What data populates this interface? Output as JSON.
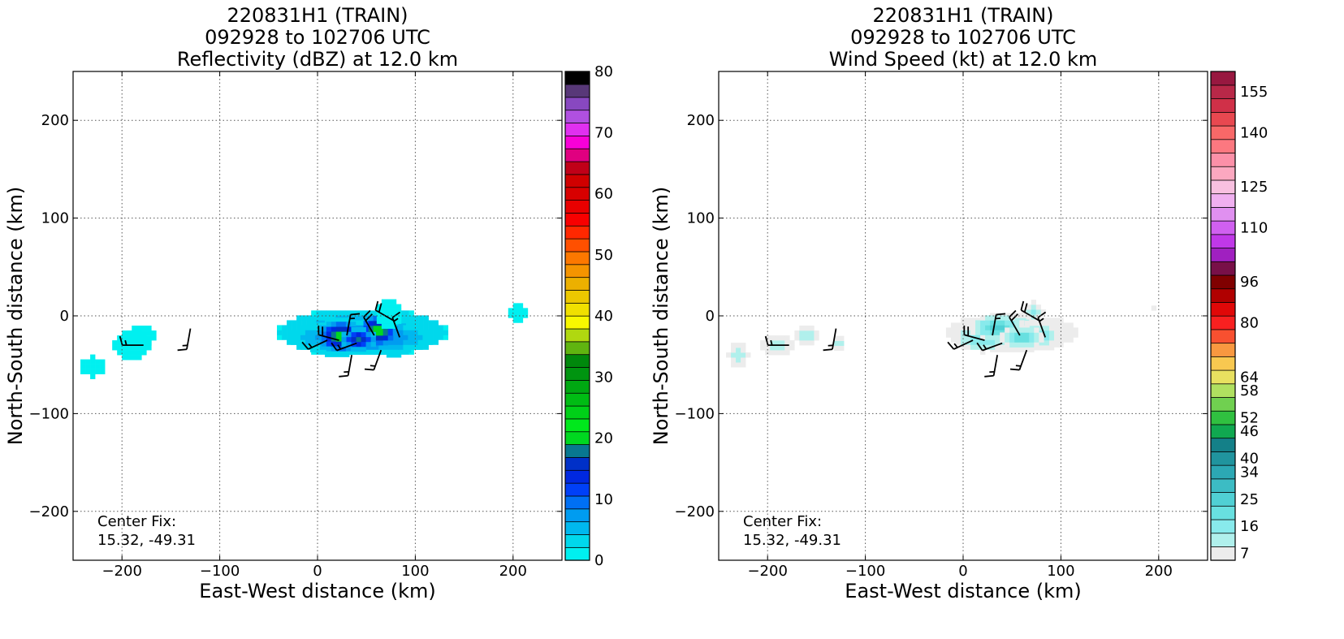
{
  "chart_data": [
    {
      "type": "heatmap",
      "title_lines": [
        "220831H1 (TRAIN)",
        "092928 to 102706 UTC",
        "Reflectivity (dBZ) at 12.0 km"
      ],
      "xlabel": "East-West distance (km)",
      "ylabel": "North-South distance (km)",
      "xlim": [
        -250,
        250
      ],
      "ylim": [
        -250,
        250
      ],
      "xticks": [
        -200,
        -100,
        0,
        100,
        200
      ],
      "xtick_labels": [
        "−200",
        "−100",
        "0",
        "100",
        "200"
      ],
      "yticks": [
        200,
        100,
        0,
        -100,
        -200
      ],
      "ytick_labels": [
        "200",
        "100",
        "0",
        "−100",
        "−200"
      ],
      "grid": true,
      "annotation_lines": [
        "Center Fix:",
        "15.32, -49.31"
      ],
      "colorbar": {
        "vmin": 0,
        "vmax": 80,
        "ticks": [
          0,
          10,
          20,
          30,
          40,
          50,
          60,
          70,
          80
        ],
        "tick_labels": [
          "0",
          "10",
          "20",
          "30",
          "40",
          "50",
          "60",
          "70",
          "80"
        ],
        "colors": [
          "#00f0f0",
          "#00d8ec",
          "#00b8ee",
          "#009cf0",
          "#0070f4",
          "#0040f8",
          "#0028e0",
          "#0030c8",
          "#087890",
          "#00d820",
          "#00e81c",
          "#00d018",
          "#00bc14",
          "#00a812",
          "#009410",
          "#00880c",
          "#60b410",
          "#b0d810",
          "#f8f800",
          "#f0e000",
          "#ecc800",
          "#ecb000",
          "#f49400",
          "#fc7800",
          "#ff5000",
          "#ff2800",
          "#f80000",
          "#e80000",
          "#d80000",
          "#d00000",
          "#c00018",
          "#e00080",
          "#f800d8",
          "#e030f0",
          "#b050e0",
          "#8848c0",
          "#583878",
          "#000000"
        ]
      },
      "fields": [
        {
          "x": 46,
          "y": -17,
          "sx": 50,
          "sy": 14,
          "v": 8
        },
        {
          "x": 20,
          "y": -22,
          "sx": 20,
          "sy": 11,
          "v": 8
        },
        {
          "x": 78,
          "y": -20,
          "sx": 16,
          "sy": 12,
          "v": 8
        },
        {
          "x": 45,
          "y": -22,
          "sx": 42,
          "sy": 10,
          "v": 11
        },
        {
          "x": 24,
          "y": -21,
          "sx": 13,
          "sy": 9,
          "v": 22
        },
        {
          "x": 62,
          "y": -15,
          "sx": 11,
          "sy": 9,
          "v": 22
        },
        {
          "x": 42,
          "y": -24,
          "sx": 10,
          "sy": 6,
          "v": 18
        },
        {
          "x": 73,
          "y": 2,
          "sx": 8,
          "sy": 9,
          "v": 2
        },
        {
          "x": -190,
          "y": -30,
          "sx": 11,
          "sy": 9,
          "v": 2
        },
        {
          "x": -230,
          "y": -52,
          "sx": 8,
          "sy": 6,
          "v": 2
        },
        {
          "x": -180,
          "y": -20,
          "sx": 9,
          "sy": 7,
          "v": 2
        },
        {
          "x": 205,
          "y": 3,
          "sx": 5,
          "sy": 5,
          "v": 2
        }
      ],
      "barbs": [
        {
          "x": -130,
          "y": -13,
          "dir": 190,
          "spd": 15
        },
        {
          "x": -178,
          "y": -30,
          "dir": 270,
          "spd": 15
        },
        {
          "x": 22,
          "y": -25,
          "dir": 285,
          "spd": 20
        },
        {
          "x": 30,
          "y": -20,
          "dir": 10,
          "spd": 15
        },
        {
          "x": 40,
          "y": -28,
          "dir": 250,
          "spd": 15
        },
        {
          "x": 58,
          "y": -20,
          "dir": 330,
          "spd": 20
        },
        {
          "x": 65,
          "y": -35,
          "dir": 200,
          "spd": 15
        },
        {
          "x": 78,
          "y": -5,
          "dir": 300,
          "spd": 20
        },
        {
          "x": 84,
          "y": -22,
          "dir": 340,
          "spd": 15
        },
        {
          "x": 35,
          "y": -40,
          "dir": 190,
          "spd": 15
        },
        {
          "x": 10,
          "y": -25,
          "dir": 245,
          "spd": 15
        }
      ]
    },
    {
      "type": "heatmap",
      "title_lines": [
        "220831H1 (TRAIN)",
        "092928 to 102706 UTC",
        "Wind Speed (kt) at 12.0 km"
      ],
      "xlabel": "East-West distance (km)",
      "ylabel": "North-South distance (km)",
      "xlim": [
        -250,
        250
      ],
      "ylim": [
        -250,
        250
      ],
      "xticks": [
        -200,
        -100,
        0,
        100,
        200
      ],
      "xtick_labels": [
        "−200",
        "−100",
        "0",
        "100",
        "200"
      ],
      "yticks": [
        200,
        100,
        0,
        -100,
        -200
      ],
      "ytick_labels": [
        "200",
        "100",
        "0",
        "−100",
        "−200"
      ],
      "grid": true,
      "annotation_lines": [
        "Center Fix:",
        "15.32, -49.31"
      ],
      "colorbar": {
        "vmin": 7,
        "vmax": 160,
        "ticks": [
          7,
          16,
          25,
          34,
          40,
          46,
          52,
          58,
          64,
          80,
          96,
          110,
          125,
          140,
          155
        ],
        "tick_labels": [
          "7",
          "16",
          "25",
          "34",
          "40",
          "46",
          "52",
          "58",
          "64",
          "80",
          "96",
          "110",
          "125",
          "140",
          "155"
        ],
        "colors": [
          "#ececec",
          "#b0f0ec",
          "#88eaec",
          "#68e0e0",
          "#50d0d4",
          "#3cbcc4",
          "#2ca8b4",
          "#20949e",
          "#148088",
          "#10a850",
          "#30c040",
          "#70d050",
          "#b0e060",
          "#e8e060",
          "#f8c850",
          "#f89840",
          "#f85030",
          "#f82020",
          "#e00808",
          "#b00000",
          "#800000",
          "#781048",
          "#a020c0",
          "#c038e8",
          "#d060f0",
          "#e090f0",
          "#f0b0f0",
          "#f8c0e0",
          "#fca8c0",
          "#fc90a8",
          "#fc7880",
          "#f86868",
          "#e84850",
          "#d03048",
          "#b82848",
          "#981840"
        ]
      },
      "fields": [
        {
          "x": 50,
          "y": -17,
          "sx": 48,
          "sy": 13,
          "v": 18
        },
        {
          "x": 20,
          "y": -22,
          "sx": 20,
          "sy": 10,
          "v": 20
        },
        {
          "x": 78,
          "y": -20,
          "sx": 15,
          "sy": 11,
          "v": 18
        },
        {
          "x": 35,
          "y": -12,
          "sx": 16,
          "sy": 8,
          "v": 28
        },
        {
          "x": 60,
          "y": -22,
          "sx": 14,
          "sy": 7,
          "v": 25
        },
        {
          "x": 72,
          "y": 4,
          "sx": 8,
          "sy": 8,
          "v": 16
        },
        {
          "x": -190,
          "y": -30,
          "sx": 12,
          "sy": 9,
          "v": 15
        },
        {
          "x": -230,
          "y": -40,
          "sx": 8,
          "sy": 10,
          "v": 15
        },
        {
          "x": -160,
          "y": -20,
          "sx": 10,
          "sy": 7,
          "v": 15
        },
        {
          "x": -127,
          "y": -28,
          "sx": 5,
          "sy": 4,
          "v": 16
        },
        {
          "x": 195,
          "y": 8,
          "sx": 4,
          "sy": 4,
          "v": 8
        }
      ],
      "barbs": [
        {
          "x": -130,
          "y": -13,
          "dir": 190,
          "spd": 15
        },
        {
          "x": -178,
          "y": -30,
          "dir": 270,
          "spd": 15
        },
        {
          "x": 22,
          "y": -25,
          "dir": 285,
          "spd": 20
        },
        {
          "x": 30,
          "y": -20,
          "dir": 10,
          "spd": 15
        },
        {
          "x": 40,
          "y": -28,
          "dir": 250,
          "spd": 15
        },
        {
          "x": 58,
          "y": -20,
          "dir": 330,
          "spd": 20
        },
        {
          "x": 65,
          "y": -35,
          "dir": 200,
          "spd": 15
        },
        {
          "x": 78,
          "y": -5,
          "dir": 300,
          "spd": 20
        },
        {
          "x": 84,
          "y": -22,
          "dir": 340,
          "spd": 15
        },
        {
          "x": 35,
          "y": -40,
          "dir": 190,
          "spd": 15
        },
        {
          "x": 10,
          "y": -25,
          "dir": 245,
          "spd": 15
        }
      ]
    }
  ]
}
